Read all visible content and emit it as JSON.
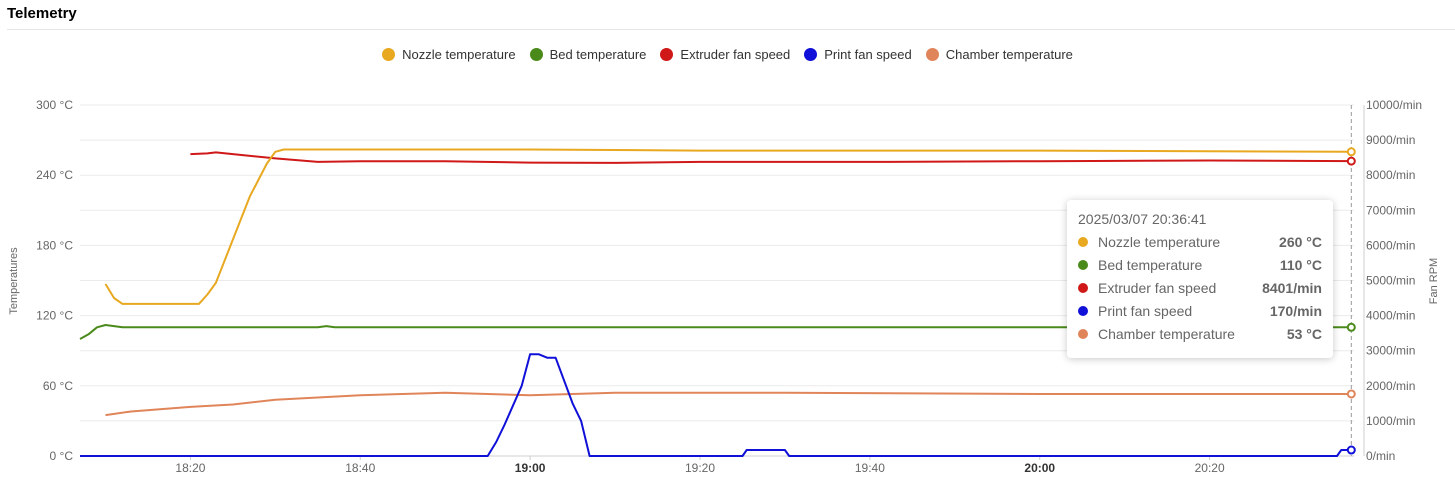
{
  "header": {
    "title": "Telemetry"
  },
  "chart_data": {
    "type": "line",
    "title": "",
    "y_left_label": "Temperatures",
    "y_right_label": "Fan RPM",
    "y_left_range": [
      0,
      300
    ],
    "y_right_range": [
      0,
      10000
    ],
    "y_left_ticks": [
      "0 °C",
      "60 °C",
      "120 °C",
      "180 °C",
      "240 °C",
      "300 °C"
    ],
    "y_right_ticks": [
      "0/min",
      "1000/min",
      "2000/min",
      "3000/min",
      "4000/min",
      "5000/min",
      "6000/min",
      "7000/min",
      "8000/min",
      "9000/min",
      "10000/min"
    ],
    "x_range": [
      "18:07",
      "20:37"
    ],
    "x_ticks": [
      {
        "t": "18:20",
        "label": "18:20",
        "bold": false
      },
      {
        "t": "18:40",
        "label": "18:40",
        "bold": false
      },
      {
        "t": "19:00",
        "label": "19:00",
        "bold": true
      },
      {
        "t": "19:20",
        "label": "19:20",
        "bold": false
      },
      {
        "t": "19:40",
        "label": "19:40",
        "bold": false
      },
      {
        "t": "20:00",
        "label": "20:00",
        "bold": true
      },
      {
        "t": "20:20",
        "label": "20:20",
        "bold": false
      }
    ],
    "grid": true,
    "legend_position": "top-center",
    "cursor_time": "20:36:41",
    "series": [
      {
        "name": "Nozzle temperature",
        "unit": "°C",
        "axis": "left",
        "color": "#e8a820",
        "points": [
          [
            "18:10",
            147
          ],
          [
            "18:11",
            135
          ],
          [
            "18:12",
            130
          ],
          [
            "18:14",
            130
          ],
          [
            "18:18",
            130
          ],
          [
            "18:21",
            130
          ],
          [
            "18:22",
            138
          ],
          [
            "18:23",
            148
          ],
          [
            "18:25",
            185
          ],
          [
            "18:27",
            222
          ],
          [
            "18:29",
            250
          ],
          [
            "18:30",
            260
          ],
          [
            "18:31",
            262
          ],
          [
            "18:40",
            262
          ],
          [
            "19:00",
            262
          ],
          [
            "19:20",
            261
          ],
          [
            "20:00",
            261
          ],
          [
            "20:36:41",
            260
          ]
        ]
      },
      {
        "name": "Bed temperature",
        "unit": "°C",
        "axis": "left",
        "color": "#4a8a1a",
        "points": [
          [
            "18:07",
            100
          ],
          [
            "18:08",
            104
          ],
          [
            "18:09",
            110
          ],
          [
            "18:10",
            112
          ],
          [
            "18:11",
            111
          ],
          [
            "18:12",
            110
          ],
          [
            "18:35",
            110
          ],
          [
            "18:36",
            111
          ],
          [
            "18:37",
            110
          ],
          [
            "19:00",
            110
          ],
          [
            "20:00",
            110
          ],
          [
            "20:36:41",
            110
          ]
        ]
      },
      {
        "name": "Extruder fan speed",
        "unit": "/min",
        "axis": "right",
        "color": "#d01818",
        "points": [
          [
            "18:20",
            8600
          ],
          [
            "18:22",
            8620
          ],
          [
            "18:23",
            8650
          ],
          [
            "18:25",
            8600
          ],
          [
            "18:30",
            8480
          ],
          [
            "18:35",
            8380
          ],
          [
            "18:40",
            8400
          ],
          [
            "18:50",
            8400
          ],
          [
            "19:00",
            8360
          ],
          [
            "19:10",
            8350
          ],
          [
            "19:20",
            8380
          ],
          [
            "19:40",
            8380
          ],
          [
            "20:00",
            8400
          ],
          [
            "20:20",
            8420
          ],
          [
            "20:36:41",
            8401
          ]
        ]
      },
      {
        "name": "Print fan speed",
        "unit": "/min",
        "axis": "right",
        "color": "#1010d8",
        "points": [
          [
            "18:07",
            0
          ],
          [
            "18:55",
            0
          ],
          [
            "18:56",
            400
          ],
          [
            "18:57",
            900
          ],
          [
            "18:59",
            2000
          ],
          [
            "19:00",
            2900
          ],
          [
            "19:01",
            2900
          ],
          [
            "19:02",
            2800
          ],
          [
            "19:03",
            2800
          ],
          [
            "19:05",
            1500
          ],
          [
            "19:06",
            1000
          ],
          [
            "19:07",
            0
          ],
          [
            "19:25",
            0
          ],
          [
            "19:25:30",
            170
          ],
          [
            "19:30",
            170
          ],
          [
            "19:30:30",
            0
          ],
          [
            "20:35",
            0
          ],
          [
            "20:35:30",
            170
          ],
          [
            "20:36:41",
            170
          ]
        ]
      },
      {
        "name": "Chamber temperature",
        "unit": "°C",
        "axis": "left",
        "color": "#e0855a",
        "points": [
          [
            "18:10",
            35
          ],
          [
            "18:13",
            38
          ],
          [
            "18:20",
            42
          ],
          [
            "18:25",
            44
          ],
          [
            "18:30",
            48
          ],
          [
            "18:40",
            52
          ],
          [
            "18:50",
            54
          ],
          [
            "19:00",
            52
          ],
          [
            "19:05",
            53
          ],
          [
            "19:10",
            54
          ],
          [
            "19:30",
            54
          ],
          [
            "20:00",
            53
          ],
          [
            "20:20",
            53
          ],
          [
            "20:36:41",
            53
          ]
        ]
      }
    ]
  },
  "tooltip": {
    "timestamp": "2025/03/07 20:36:41",
    "rows": [
      {
        "name": "Nozzle temperature",
        "value": "260 °C",
        "color": "#e8a820"
      },
      {
        "name": "Bed temperature",
        "value": "110 °C",
        "color": "#4a8a1a"
      },
      {
        "name": "Extruder fan speed",
        "value": "8401/min",
        "color": "#d01818"
      },
      {
        "name": "Print fan speed",
        "value": "170/min",
        "color": "#1010d8"
      },
      {
        "name": "Chamber temperature",
        "value": "53 °C",
        "color": "#e0855a"
      }
    ]
  }
}
